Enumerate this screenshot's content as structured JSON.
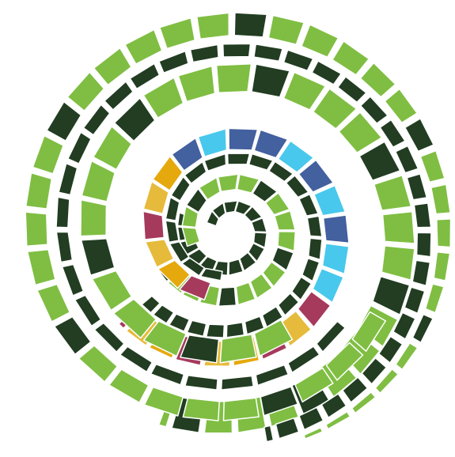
{
  "palette": {
    "lime": "#7fbe42",
    "dark_green": "#223d22",
    "navy": "#43609f",
    "sky": "#48c8ec",
    "magenta": "#a63a5c",
    "gold": "#e5a90d",
    "mustard": "#e6bb3b",
    "background": "#ffffff"
  },
  "arms": [
    {
      "name": "outer-arm",
      "colors": [
        "lime",
        "dark_green"
      ]
    },
    {
      "name": "inner-arm",
      "colors": [
        "dark_green",
        "lime",
        "navy",
        "sky",
        "magenta",
        "gold",
        "mustard"
      ]
    }
  ]
}
